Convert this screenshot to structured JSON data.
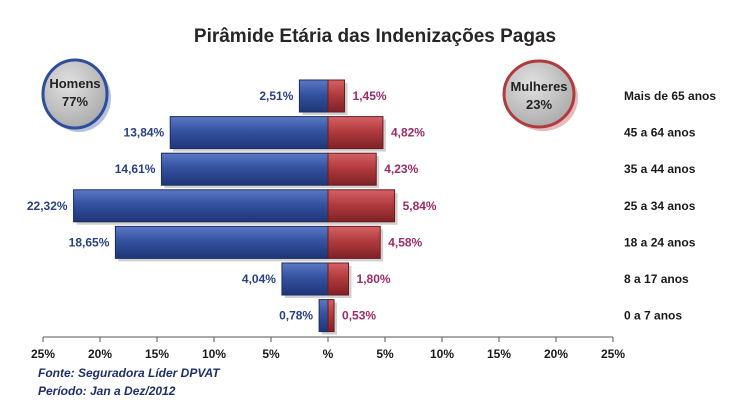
{
  "chart_data": {
    "type": "bar",
    "orientation": "horizontal-population-pyramid",
    "title": "Pirâmide Etária das Indenizações Pagas",
    "categories": [
      "Mais de 65 anos",
      "45 a 64 anos",
      "35 a 44 anos",
      "25 a 34 anos",
      "18 a 24 anos",
      "8 a 17 anos",
      "0 a 7 anos"
    ],
    "series": [
      {
        "name": "Homens",
        "values": [
          2.51,
          13.84,
          14.61,
          22.32,
          18.65,
          4.04,
          0.78
        ],
        "labels": [
          "2,51%",
          "13,84%",
          "14,61%",
          "22,32%",
          "18,65%",
          "4,04%",
          "0,78%"
        ],
        "color": "#2e4d9c"
      },
      {
        "name": "Mulheres",
        "values": [
          1.45,
          4.82,
          4.23,
          5.84,
          4.58,
          1.8,
          0.53
        ],
        "labels": [
          "1,45%",
          "4,82%",
          "4,23%",
          "5,84%",
          "4,58%",
          "1,80%",
          "0,53%"
        ],
        "color": "#b13a3c"
      }
    ],
    "xlim": [
      -25,
      25
    ],
    "x_ticks": [
      "25%",
      "20%",
      "15%",
      "10%",
      "5%",
      "%",
      "5%",
      "10%",
      "15%",
      "20%",
      "25%"
    ],
    "totals": {
      "men": {
        "name": "Homens",
        "pct": "77%"
      },
      "women": {
        "name": "Mulheres",
        "pct": "23%"
      }
    },
    "grid": false
  },
  "footer": {
    "source": "Fonte: Seguradora Líder DPVAT",
    "period": "Período: Jan a Dez/2012"
  },
  "colors": {
    "men_bar": "#2e4d9c",
    "women_bar": "#b13a3c",
    "men_label": "#2a3f86",
    "women_label": "#9e2a66"
  }
}
